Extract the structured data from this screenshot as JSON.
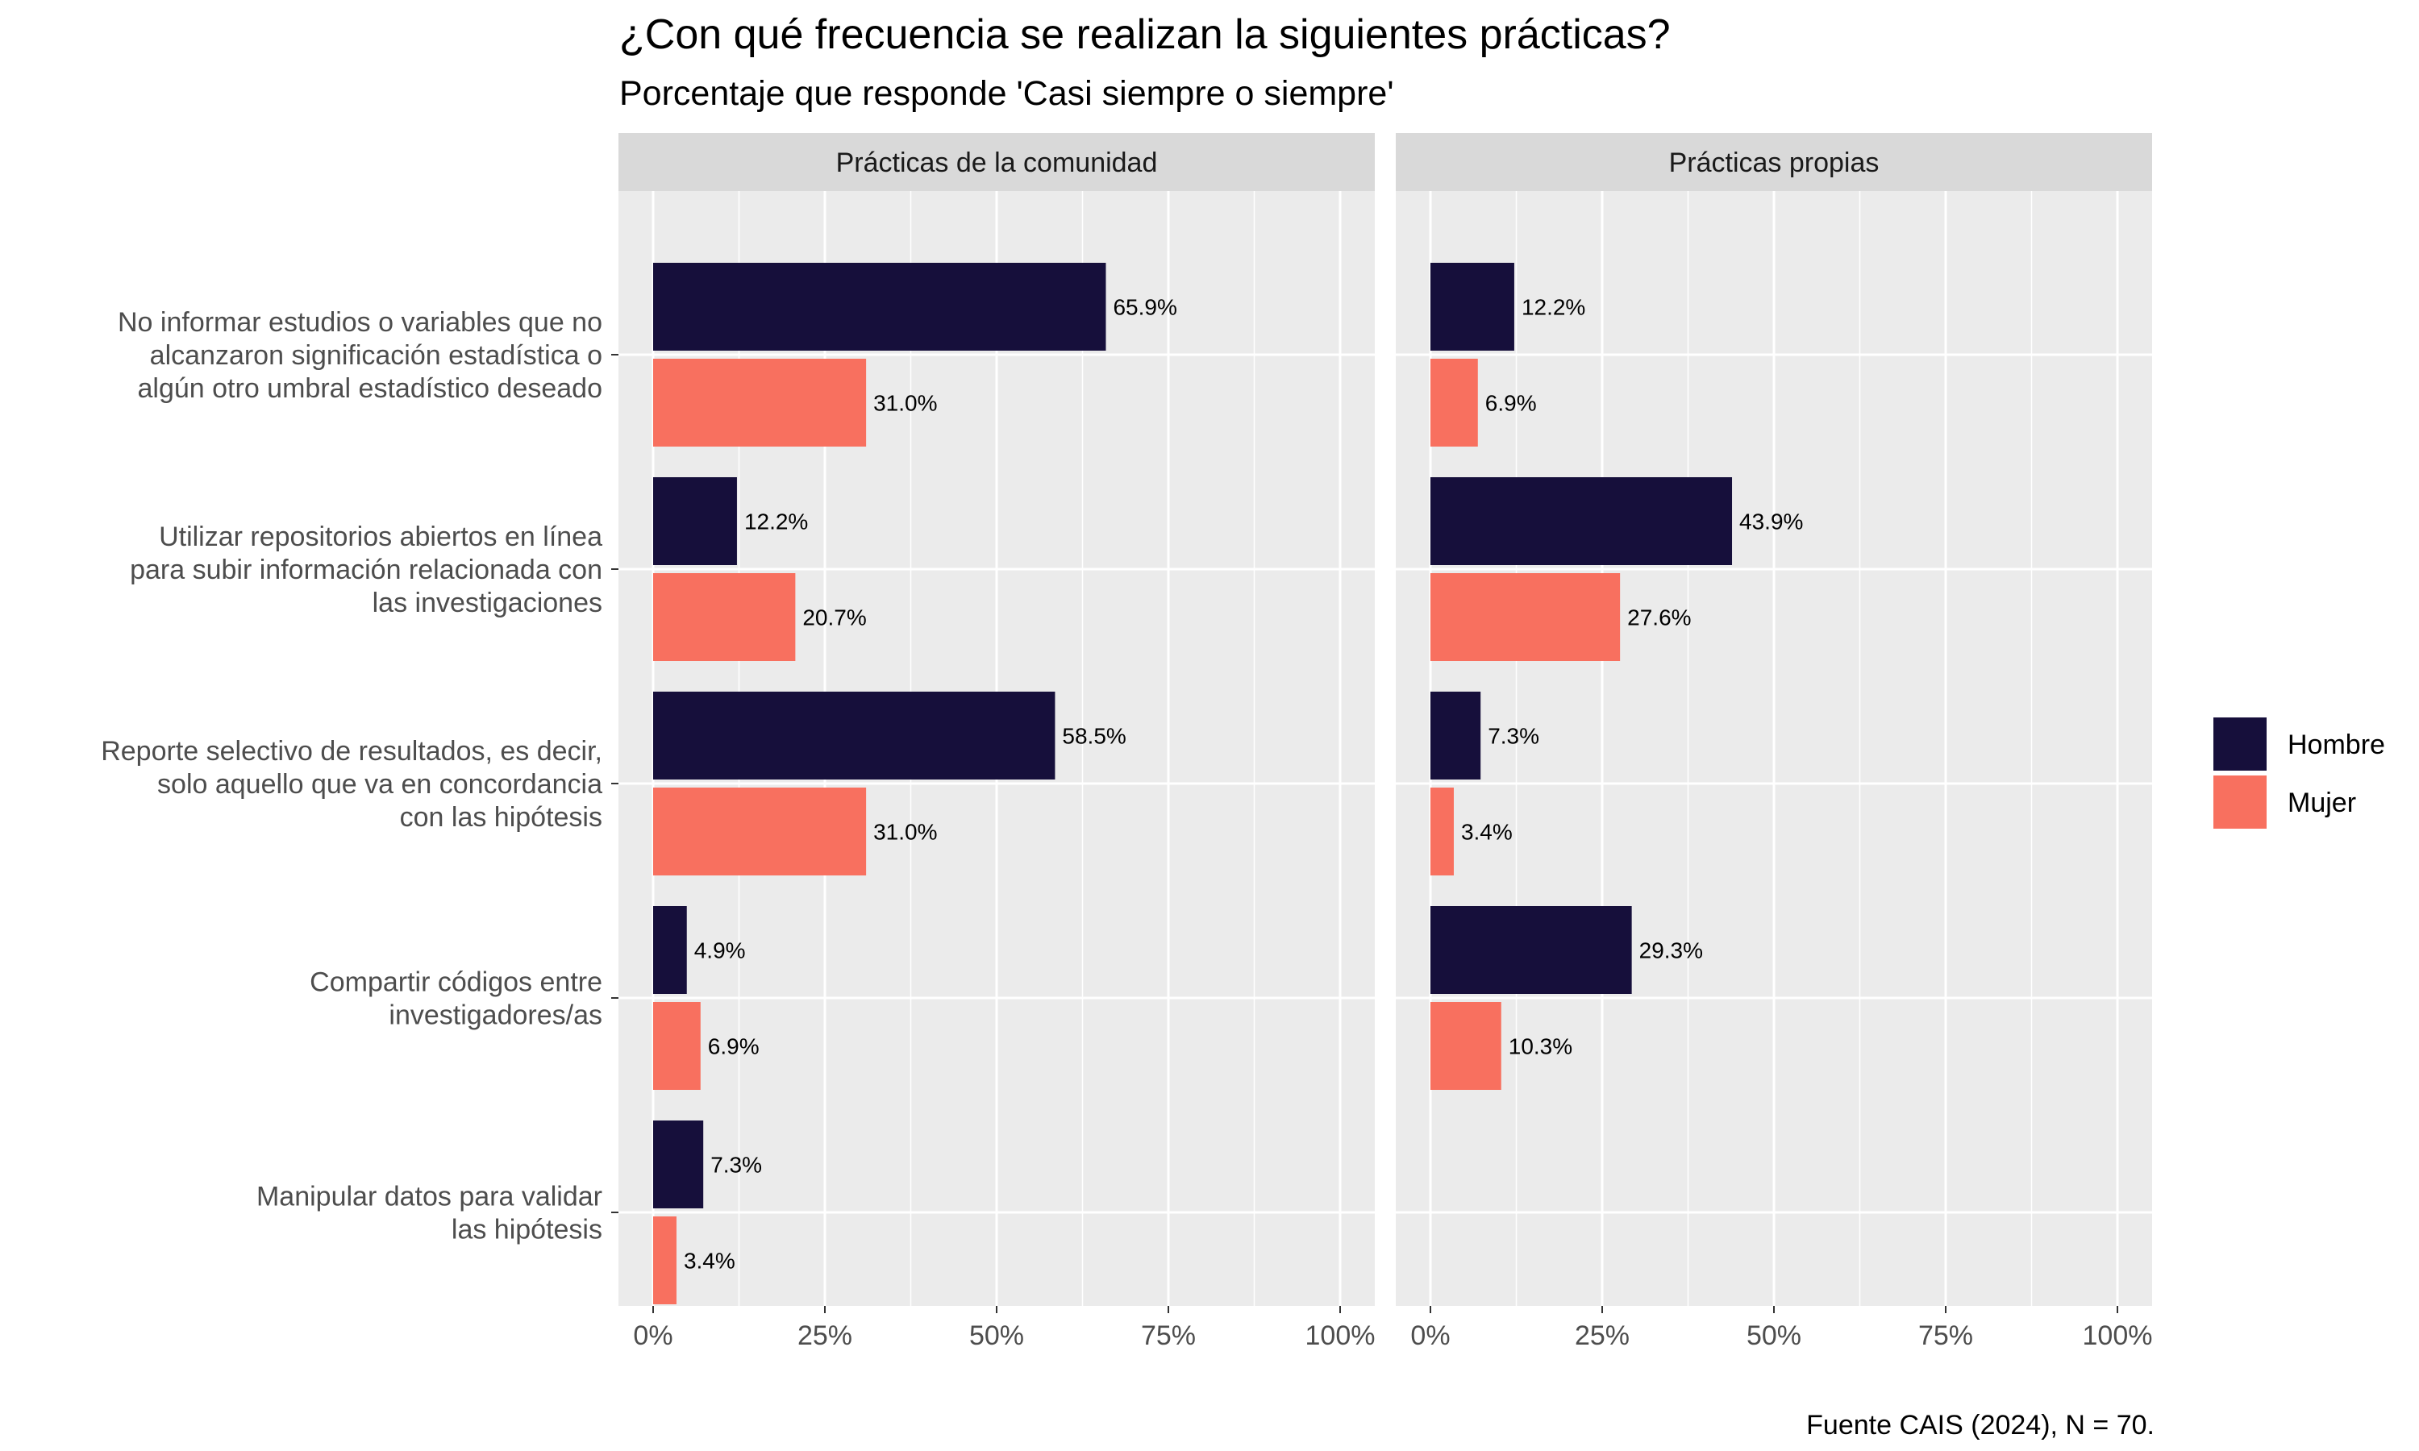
{
  "chart_data": {
    "type": "bar",
    "orientation": "horizontal",
    "title": "¿Con qué frecuencia se realizan la siguientes prácticas?",
    "subtitle": "Porcentaje que responde 'Casi siempre o siempre'",
    "caption": "Fuente CAIS (2024), N = 70.",
    "categories": [
      [
        "No informar estudios o variables que no",
        "alcanzaron significación estadística o",
        "algún otro umbral estadístico deseado"
      ],
      [
        "Utilizar repositorios abiertos en línea",
        "para subir información relacionada con",
        "las investigaciones"
      ],
      [
        "Reporte selectivo de resultados, es decir,",
        "solo aquello que va en concordancia",
        "con las hipótesis"
      ],
      [
        "Compartir códigos entre",
        "investigadores/as"
      ],
      [
        "Manipular datos para validar",
        "las hipótesis"
      ]
    ],
    "xlim": [
      0,
      100
    ],
    "xticks": [
      0,
      25,
      50,
      75,
      100
    ],
    "xtick_labels": [
      "0%",
      "25%",
      "50%",
      "75%",
      "100%"
    ],
    "grid": true,
    "legend_position": "right",
    "series": [
      {
        "name": "Hombre",
        "color": "#160f3b"
      },
      {
        "name": "Mujer",
        "color": "#f8705f"
      }
    ],
    "panels": [
      {
        "name": "Prácticas de la comunidad",
        "values": {
          "Hombre": [
            65.9,
            12.2,
            58.5,
            4.9,
            7.3
          ],
          "Mujer": [
            31.0,
            20.7,
            31.0,
            6.9,
            3.4
          ]
        },
        "labels": {
          "Hombre": [
            "65.9%",
            "12.2%",
            "58.5%",
            "4.9%",
            "7.3%"
          ],
          "Mujer": [
            "31.0%",
            "20.7%",
            "31.0%",
            "6.9%",
            "3.4%"
          ]
        }
      },
      {
        "name": "Prácticas propias",
        "values": {
          "Hombre": [
            12.2,
            43.9,
            7.3,
            29.3,
            null
          ],
          "Mujer": [
            6.9,
            27.6,
            3.4,
            10.3,
            null
          ]
        },
        "labels": {
          "Hombre": [
            "12.2%",
            "43.9%",
            "7.3%",
            "29.3%",
            null
          ],
          "Mujer": [
            "6.9%",
            "27.6%",
            "3.4%",
            "10.3%",
            null
          ]
        }
      }
    ]
  },
  "colors": {
    "panel_background": "#ebebeb",
    "strip_background": "#d9d9d9",
    "grid_line": "#ffffff"
  }
}
